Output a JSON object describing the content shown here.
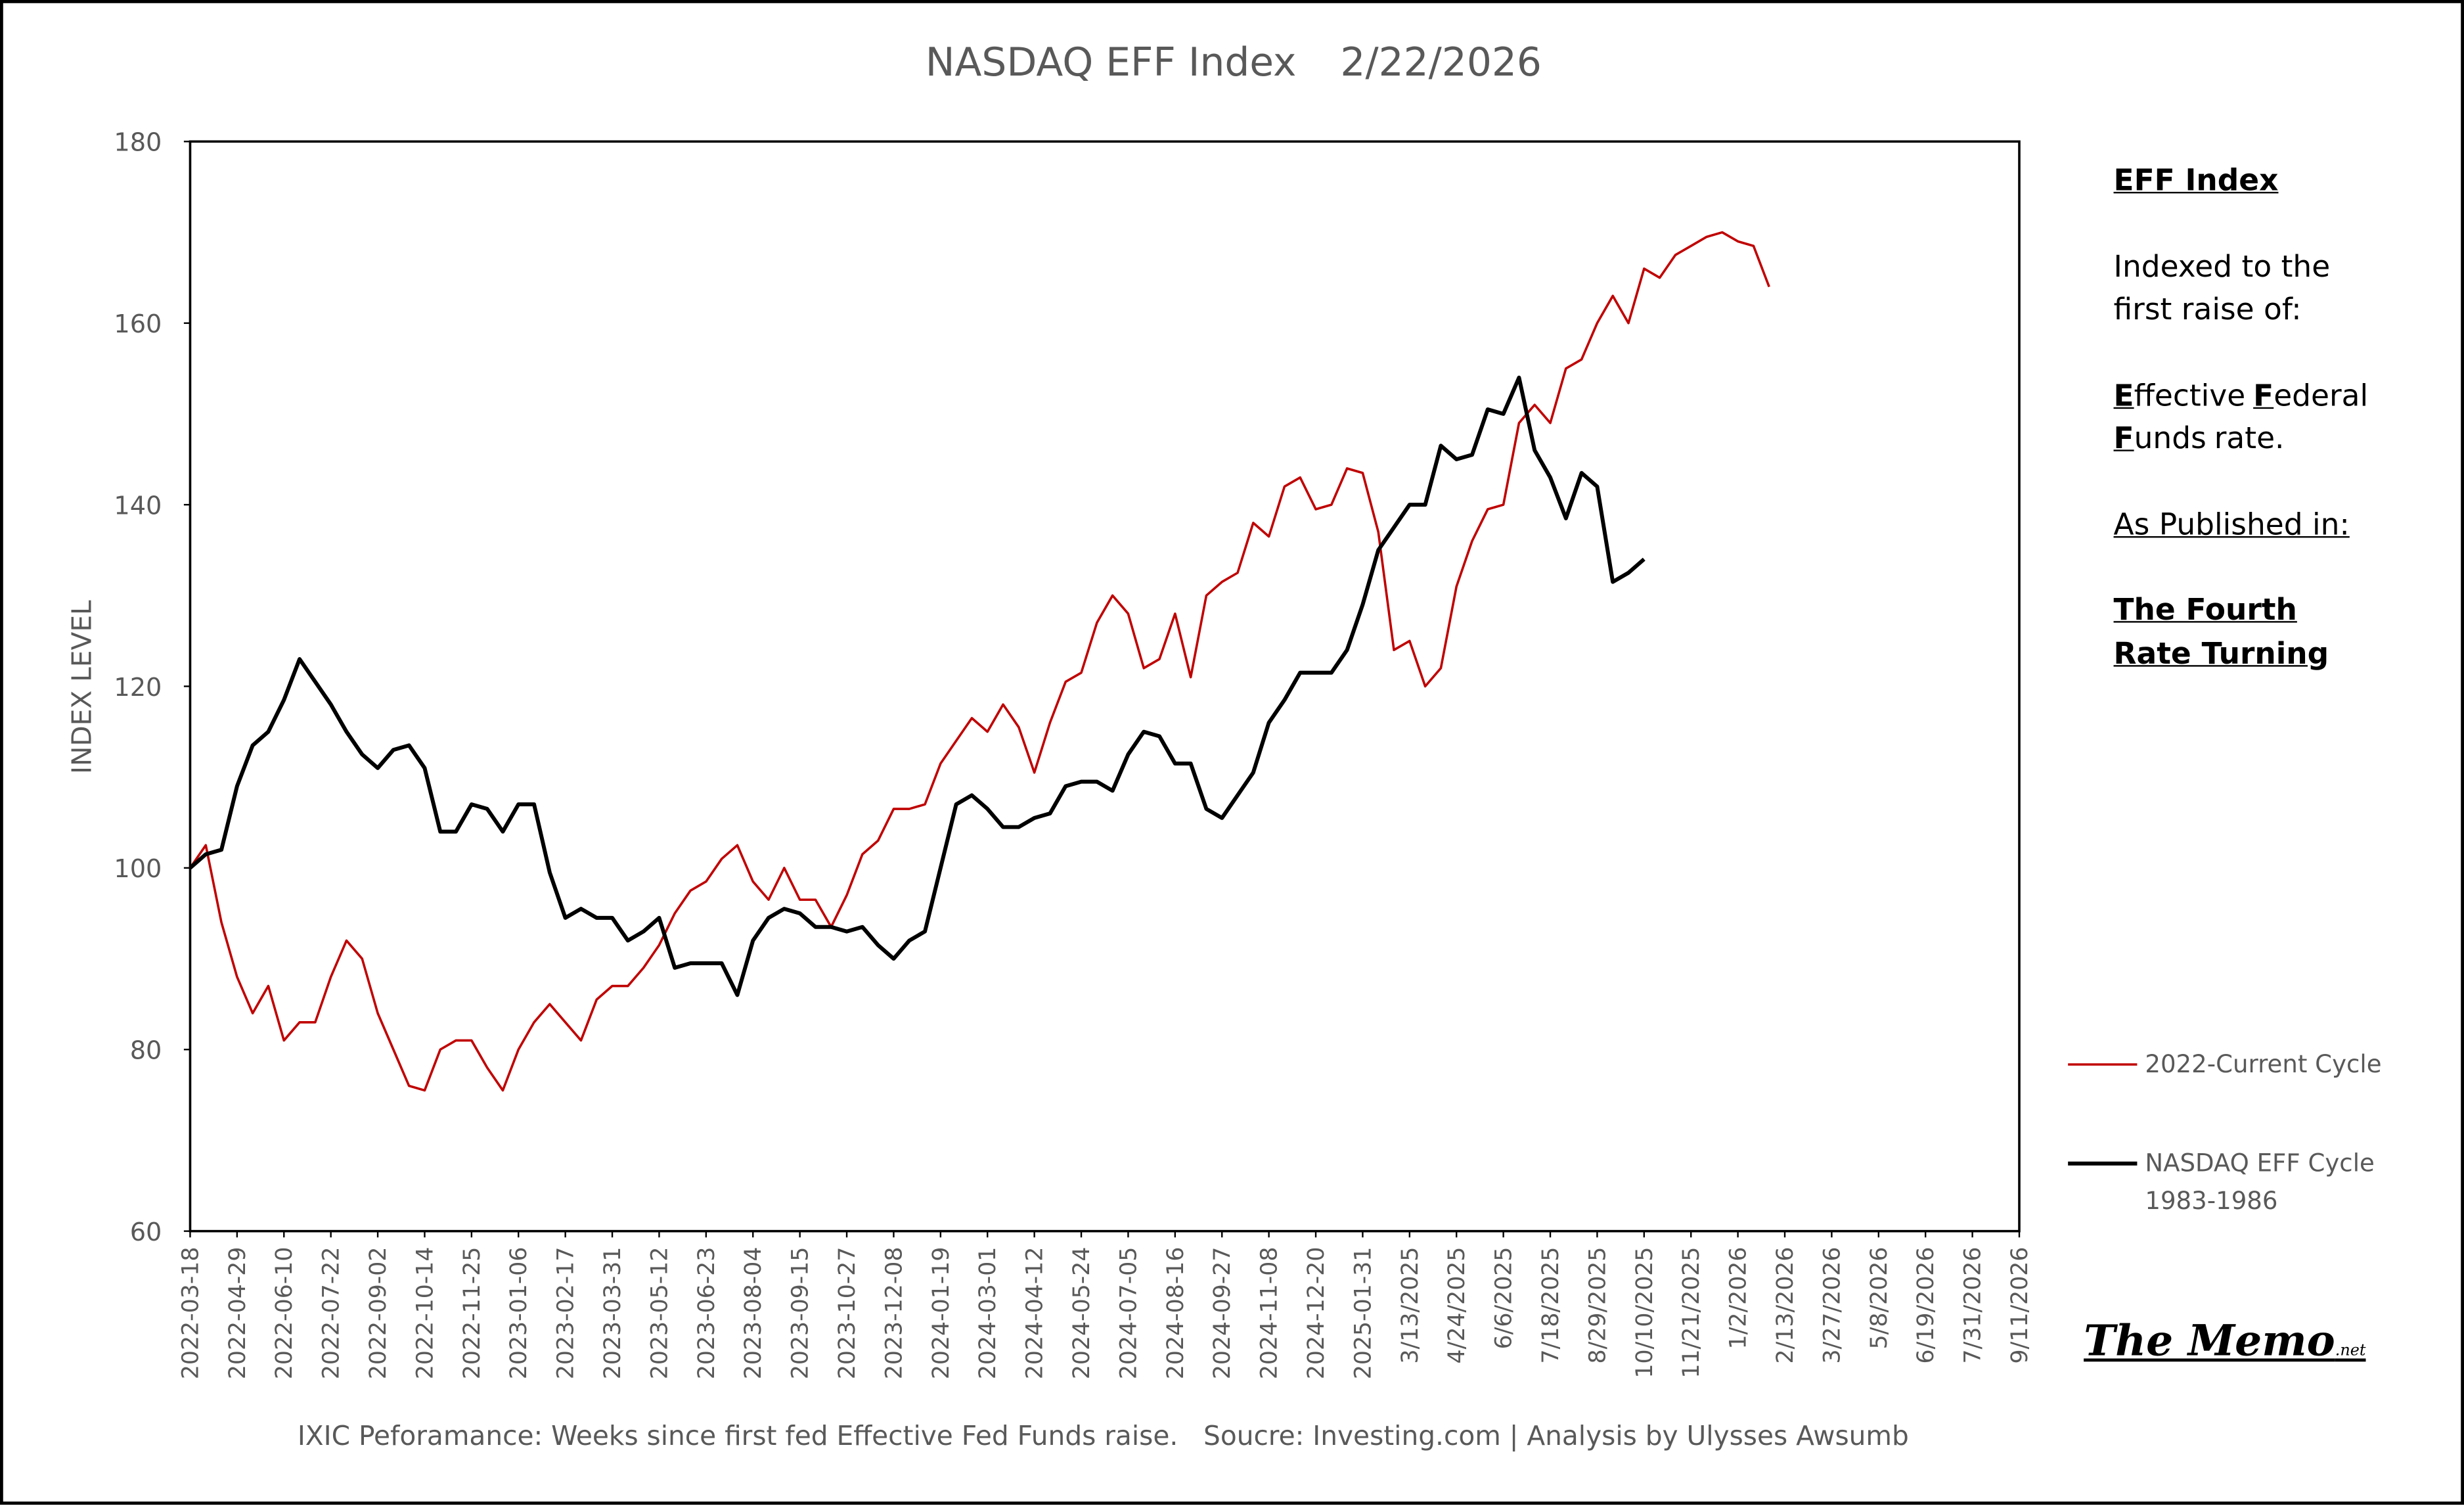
{
  "chart_data": {
    "type": "line",
    "title": "NASDAQ EFF Index",
    "date": "2/22/2026",
    "ylabel": "INDEX LEVEL",
    "source": "IXIC Peforamance: Weeks since first fed Effective Fed Funds raise.   Soucre: Investing.com | Analysis by Ulysses Awsumb",
    "ylim": [
      60,
      180
    ],
    "yticks": [
      60,
      80,
      100,
      120,
      140,
      160,
      180
    ],
    "grid": false,
    "categories": [
      "2022-03-18",
      null,
      null,
      "2022-04-29",
      null,
      null,
      "2022-06-10",
      null,
      null,
      "2022-07-22",
      null,
      null,
      "2022-09-02",
      null,
      null,
      "2022-10-14",
      null,
      null,
      "2022-11-25",
      null,
      null,
      "2023-01-06",
      null,
      null,
      "2023-02-17",
      null,
      null,
      "2023-03-31",
      null,
      null,
      "2023-05-12",
      null,
      null,
      "2023-06-23",
      null,
      null,
      "2023-08-04",
      null,
      null,
      "2023-09-15",
      null,
      null,
      "2023-10-27",
      null,
      null,
      "2023-12-08",
      null,
      null,
      "2024-01-19",
      null,
      null,
      "2024-03-01",
      null,
      null,
      "2024-04-12",
      null,
      null,
      "2024-05-24",
      null,
      null,
      "2024-07-05",
      null,
      null,
      "2024-08-16",
      null,
      null,
      "2024-09-27",
      null,
      null,
      "2024-11-08",
      null,
      null,
      "2024-12-20",
      null,
      null,
      "2025-01-31",
      null,
      null,
      "3/13/2025",
      null,
      null,
      "4/24/2025",
      null,
      null,
      "6/6/2025",
      null,
      null,
      "7/18/2025",
      null,
      null,
      "8/29/2025",
      null,
      null,
      "10/10/2025",
      null,
      null,
      "11/21/2025",
      null,
      null,
      "1/2/2026",
      null,
      null,
      "2/13/2026",
      null,
      null,
      "3/27/2026",
      null,
      null,
      "5/8/2026",
      null,
      null,
      "6/19/2026",
      null,
      null,
      "7/31/2026",
      null,
      null,
      "9/11/2026"
    ],
    "series": [
      {
        "name": "2022-Current Cycle",
        "color": "#c00000",
        "width": 1.5,
        "values": [
          100,
          102.5,
          94,
          88,
          84,
          87,
          81,
          83,
          83,
          88,
          92,
          90,
          84,
          80,
          76,
          75.5,
          80,
          81,
          81,
          78,
          75.5,
          80,
          83,
          85,
          83,
          81,
          85.5,
          87,
          87,
          89,
          91.5,
          95,
          97.5,
          98.5,
          101,
          102.5,
          98.5,
          96.5,
          100,
          96.5,
          96.5,
          93.5,
          97,
          101.5,
          103,
          106.5,
          106.5,
          107,
          111.5,
          114,
          116.5,
          115,
          118,
          115.5,
          110.5,
          116,
          120.5,
          121.5,
          127,
          130,
          128,
          122,
          123,
          128,
          121,
          130,
          131.5,
          132.5,
          138,
          136.5,
          142,
          143,
          139.5,
          140,
          144,
          143.5,
          137,
          124,
          125,
          120,
          122,
          131,
          136,
          139.5,
          140,
          149,
          151,
          149,
          155,
          156,
          160,
          163,
          160,
          166,
          165,
          167.5,
          168.5,
          169.5,
          170,
          169,
          168.5,
          164,
          null,
          null,
          null,
          null,
          null,
          null,
          null,
          null,
          null,
          null,
          null,
          null,
          null,
          null,
          null,
          null
        ]
      },
      {
        "name": "NASDAQ EFF Cycle 1983-1986",
        "color": "#000000",
        "width": 2.5,
        "values": [
          100,
          101.5,
          102,
          109,
          113.5,
          115,
          118.5,
          123,
          120.5,
          118,
          115,
          112.5,
          111,
          113,
          113.5,
          111,
          104,
          104,
          107,
          106.5,
          104,
          107,
          107,
          99.5,
          94.5,
          95.5,
          94.5,
          94.5,
          92,
          93,
          94.5,
          89,
          89.5,
          89.5,
          89.5,
          86,
          92,
          94.5,
          95.5,
          95,
          93.5,
          93.5,
          93,
          93.5,
          91.5,
          90,
          92,
          93,
          100,
          107,
          108,
          106.5,
          104.5,
          104.5,
          105.5,
          106,
          109,
          109.5,
          109.5,
          108.5,
          112.5,
          115,
          114.5,
          111.5,
          111.5,
          106.5,
          105.5,
          108,
          110.5,
          116,
          118.5,
          121.5,
          121.5,
          121.5,
          124,
          129,
          135,
          137.5,
          140,
          140,
          146.5,
          145,
          145.5,
          150.5,
          150,
          154,
          146,
          143,
          138.5,
          143.5,
          142,
          131.5,
          132.5,
          134,
          null,
          null,
          null,
          null,
          null,
          null,
          null,
          null,
          null,
          null,
          null,
          null,
          null,
          null,
          null,
          null,
          null,
          null,
          null,
          null,
          null,
          null,
          null,
          null
        ]
      }
    ]
  },
  "side_note": {
    "heading": "EFF Index",
    "intro": "Indexed to the first raise of:",
    "rate_words": [
      "Effective",
      "Federal",
      "Funds",
      "rate."
    ],
    "published": "As Published in:",
    "publication": "The Fourth Rate Turning"
  },
  "watermark": {
    "name": "The Memo",
    "suffix": ".net"
  }
}
